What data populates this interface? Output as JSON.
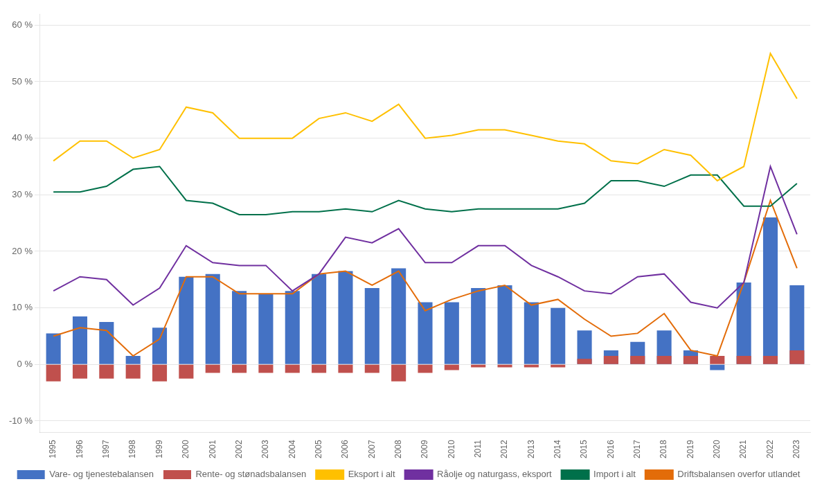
{
  "chart_data": {
    "type": "bar",
    "categories": [
      "1995",
      "1996",
      "1997",
      "1998",
      "1999",
      "2000",
      "2001",
      "2002",
      "2003",
      "2004",
      "2005",
      "2006",
      "2007",
      "2008",
      "2009",
      "2010",
      "2011",
      "2012",
      "2013",
      "2014",
      "2015",
      "2016",
      "2017",
      "2018",
      "2019",
      "2020",
      "2021",
      "2022",
      "2023"
    ],
    "series": [
      {
        "name": "Vare- og tjenestebalansen",
        "type": "bar",
        "color": "#4472c4",
        "values": [
          5.5,
          8.5,
          7.5,
          1.5,
          6.5,
          15.5,
          16.0,
          13.0,
          12.5,
          13.0,
          16.0,
          16.5,
          13.5,
          17.0,
          11.0,
          11.0,
          13.5,
          14.0,
          11.0,
          10.0,
          6.0,
          2.5,
          4.0,
          6.0,
          2.5,
          -1.0,
          14.5,
          26.0,
          14.0
        ]
      },
      {
        "name": "Rente- og stønadsbalansen",
        "type": "bar",
        "color": "#c0504d",
        "values": [
          -3.0,
          -2.5,
          -2.5,
          -2.5,
          -3.0,
          -2.5,
          -1.5,
          -1.5,
          -1.5,
          -1.5,
          -1.5,
          -1.5,
          -1.5,
          -3.0,
          -1.5,
          -1.0,
          -0.5,
          -0.5,
          -0.5,
          -0.5,
          1.0,
          1.5,
          1.5,
          1.5,
          1.5,
          1.5,
          1.5,
          1.5,
          2.5
        ]
      },
      {
        "name": "Eksport i alt",
        "type": "line",
        "color": "#ffc000",
        "values": [
          36.0,
          39.5,
          39.5,
          36.5,
          38.0,
          45.5,
          44.5,
          40.0,
          40.0,
          40.0,
          43.5,
          44.5,
          43.0,
          46.0,
          40.0,
          40.5,
          41.5,
          41.5,
          40.5,
          39.5,
          39.0,
          36.0,
          35.5,
          38.0,
          37.0,
          32.5,
          35.0,
          55.0,
          47.0
        ]
      },
      {
        "name": "Råolje og naturgass, eksport",
        "type": "line",
        "color": "#7030a0",
        "values": [
          13.0,
          15.5,
          15.0,
          10.5,
          13.5,
          21.0,
          18.0,
          17.5,
          17.5,
          13.0,
          16.0,
          22.5,
          21.5,
          24.0,
          18.0,
          18.0,
          21.0,
          21.0,
          17.5,
          15.5,
          13.0,
          12.5,
          15.5,
          16.0,
          11.0,
          10.0,
          14.5,
          35.0,
          23.0
        ]
      },
      {
        "name": "Import i alt",
        "type": "line",
        "color": "#00704a",
        "values": [
          30.5,
          30.5,
          31.5,
          34.5,
          35.0,
          29.0,
          28.5,
          26.5,
          26.5,
          27.0,
          27.0,
          27.5,
          27.0,
          29.0,
          27.5,
          27.0,
          27.5,
          27.5,
          27.5,
          27.5,
          28.5,
          32.5,
          32.5,
          31.5,
          33.5,
          33.5,
          28.0,
          28.0,
          32.0
        ]
      },
      {
        "name": "Driftsbalansen overfor utlandet",
        "type": "line",
        "color": "#e36c09",
        "values": [
          5.0,
          6.5,
          6.0,
          1.5,
          4.5,
          15.5,
          15.5,
          12.5,
          12.5,
          12.5,
          16.0,
          16.5,
          14.0,
          16.5,
          9.5,
          11.5,
          13.0,
          14.0,
          10.5,
          11.5,
          8.0,
          5.0,
          5.5,
          9.0,
          2.5,
          1.5,
          14.5,
          29.0,
          17.0
        ]
      }
    ],
    "ylim": [
      -12,
      62
    ],
    "yticks": [
      {
        "value": -10,
        "label": "-10 %"
      },
      {
        "value": 0,
        "label": "0 %"
      },
      {
        "value": 10,
        "label": "10 %"
      },
      {
        "value": 20,
        "label": "20 %"
      },
      {
        "value": 30,
        "label": "30 %"
      },
      {
        "value": 40,
        "label": "40 %"
      },
      {
        "value": 50,
        "label": "50 %"
      },
      {
        "value": 60,
        "label": "60 %"
      }
    ],
    "grid": true,
    "legend": "bottom"
  }
}
